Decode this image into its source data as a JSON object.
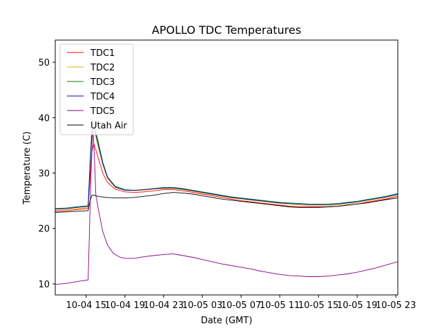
{
  "chart_data": {
    "type": "line",
    "title": "APOLLO TDC Temperatures",
    "xlabel": "Date (GMT)",
    "ylabel": "Temperature (C)",
    "xlim": [
      11.8,
      47.2
    ],
    "ylim": [
      8.0,
      54.0
    ],
    "x_unit": "hours since 10-04 00:00 GMT",
    "x_ticks": [
      {
        "value": 15,
        "label": "10-04 15"
      },
      {
        "value": 19,
        "label": "10-04 19"
      },
      {
        "value": 23,
        "label": "10-04 23"
      },
      {
        "value": 27,
        "label": "10-05 03"
      },
      {
        "value": 31,
        "label": "10-05 07"
      },
      {
        "value": 35,
        "label": "10-05 11"
      },
      {
        "value": 39,
        "label": "10-05 15"
      },
      {
        "value": 43,
        "label": "10-05 19"
      },
      {
        "value": 47,
        "label": "10-05 23"
      }
    ],
    "y_ticks": [
      {
        "value": 10,
        "label": "10"
      },
      {
        "value": 20,
        "label": "20"
      },
      {
        "value": 30,
        "label": "30"
      },
      {
        "value": 40,
        "label": "40"
      },
      {
        "value": 50,
        "label": "50"
      }
    ],
    "grid": false,
    "legend_position": "top-left",
    "series": [
      {
        "name": "TDC1",
        "color": "#ff0000",
        "points": [
          [
            11.8,
            23.1
          ],
          [
            13,
            23.2
          ],
          [
            14,
            23.4
          ],
          [
            15.2,
            23.6
          ],
          [
            15.4,
            29.0
          ],
          [
            15.6,
            34.0
          ],
          [
            15.8,
            35.3
          ],
          [
            16.2,
            33.0
          ],
          [
            16.7,
            30.0
          ],
          [
            17.2,
            28.3
          ],
          [
            18,
            27.1
          ],
          [
            19,
            26.6
          ],
          [
            20,
            26.5
          ],
          [
            21,
            26.6
          ],
          [
            22,
            26.8
          ],
          [
            23,
            27.0
          ],
          [
            24,
            27.0
          ],
          [
            25,
            26.8
          ],
          [
            26,
            26.5
          ],
          [
            27,
            26.2
          ],
          [
            28,
            25.9
          ],
          [
            29,
            25.6
          ],
          [
            30,
            25.3
          ],
          [
            31,
            25.0
          ],
          [
            32,
            24.8
          ],
          [
            33,
            24.6
          ],
          [
            34,
            24.4
          ],
          [
            35,
            24.2
          ],
          [
            36,
            24.0
          ],
          [
            37,
            23.9
          ],
          [
            38,
            23.9
          ],
          [
            39,
            23.9
          ],
          [
            40,
            23.9
          ],
          [
            41,
            24.0
          ],
          [
            42,
            24.2
          ],
          [
            43,
            24.4
          ],
          [
            44,
            24.7
          ],
          [
            45,
            25.0
          ],
          [
            46,
            25.3
          ],
          [
            47.2,
            25.8
          ]
        ]
      },
      {
        "name": "TDC2",
        "color": "#e5b000",
        "points": [
          [
            11.8,
            23.3
          ],
          [
            13,
            23.4
          ],
          [
            14,
            23.6
          ],
          [
            15.2,
            23.8
          ],
          [
            15.4,
            31.0
          ],
          [
            15.6,
            37.0
          ],
          [
            15.8,
            38.0
          ],
          [
            16.2,
            35.0
          ],
          [
            16.7,
            31.5
          ],
          [
            17.2,
            29.0
          ],
          [
            18,
            27.4
          ],
          [
            19,
            26.9
          ],
          [
            20,
            26.8
          ],
          [
            21,
            26.9
          ],
          [
            22,
            27.1
          ],
          [
            23,
            27.2
          ],
          [
            24,
            27.2
          ],
          [
            25,
            27.0
          ],
          [
            26,
            26.7
          ],
          [
            27,
            26.4
          ],
          [
            28,
            26.1
          ],
          [
            29,
            25.8
          ],
          [
            30,
            25.5
          ],
          [
            31,
            25.3
          ],
          [
            32,
            25.1
          ],
          [
            33,
            24.9
          ],
          [
            34,
            24.7
          ],
          [
            35,
            24.5
          ],
          [
            36,
            24.3
          ],
          [
            37,
            24.2
          ],
          [
            38,
            24.1
          ],
          [
            39,
            24.1
          ],
          [
            40,
            24.1
          ],
          [
            41,
            24.2
          ],
          [
            42,
            24.4
          ],
          [
            43,
            24.6
          ],
          [
            44,
            24.9
          ],
          [
            45,
            25.2
          ],
          [
            46,
            25.5
          ],
          [
            47.2,
            26.0
          ]
        ]
      },
      {
        "name": "TDC3",
        "color": "#008000",
        "points": [
          [
            11.8,
            23.6
          ],
          [
            13,
            23.7
          ],
          [
            14,
            23.9
          ],
          [
            15.2,
            24.1
          ],
          [
            15.4,
            32.0
          ],
          [
            15.6,
            38.5
          ],
          [
            15.8,
            39.0
          ],
          [
            16.2,
            36.0
          ],
          [
            16.7,
            32.0
          ],
          [
            17.2,
            29.3
          ],
          [
            18,
            27.6
          ],
          [
            19,
            27.0
          ],
          [
            20,
            26.9
          ],
          [
            21,
            27.0
          ],
          [
            22,
            27.2
          ],
          [
            23,
            27.4
          ],
          [
            24,
            27.4
          ],
          [
            25,
            27.2
          ],
          [
            26,
            26.9
          ],
          [
            27,
            26.6
          ],
          [
            28,
            26.3
          ],
          [
            29,
            26.0
          ],
          [
            30,
            25.7
          ],
          [
            31,
            25.5
          ],
          [
            32,
            25.3
          ],
          [
            33,
            25.1
          ],
          [
            34,
            24.9
          ],
          [
            35,
            24.7
          ],
          [
            36,
            24.6
          ],
          [
            37,
            24.5
          ],
          [
            38,
            24.4
          ],
          [
            39,
            24.4
          ],
          [
            40,
            24.4
          ],
          [
            41,
            24.5
          ],
          [
            42,
            24.7
          ],
          [
            43,
            24.9
          ],
          [
            44,
            25.2
          ],
          [
            45,
            25.5
          ],
          [
            46,
            25.8
          ],
          [
            47.2,
            26.3
          ]
        ]
      },
      {
        "name": "TDC4",
        "color": "#0000cc",
        "points": [
          [
            11.8,
            23.5
          ],
          [
            13,
            23.6
          ],
          [
            14,
            23.8
          ],
          [
            15.2,
            24.0
          ],
          [
            15.4,
            31.5
          ],
          [
            15.6,
            37.5
          ],
          [
            15.8,
            38.3
          ],
          [
            16.2,
            35.5
          ],
          [
            16.7,
            31.8
          ],
          [
            17.2,
            29.2
          ],
          [
            18,
            27.5
          ],
          [
            19,
            26.9
          ],
          [
            20,
            26.9
          ],
          [
            21,
            27.0
          ],
          [
            22,
            27.2
          ],
          [
            23,
            27.3
          ],
          [
            24,
            27.3
          ],
          [
            25,
            27.1
          ],
          [
            26,
            26.8
          ],
          [
            27,
            26.5
          ],
          [
            28,
            26.2
          ],
          [
            29,
            25.9
          ],
          [
            30,
            25.6
          ],
          [
            31,
            25.4
          ],
          [
            32,
            25.2
          ],
          [
            33,
            25.0
          ],
          [
            34,
            24.8
          ],
          [
            35,
            24.6
          ],
          [
            36,
            24.5
          ],
          [
            37,
            24.4
          ],
          [
            38,
            24.3
          ],
          [
            39,
            24.3
          ],
          [
            40,
            24.3
          ],
          [
            41,
            24.4
          ],
          [
            42,
            24.6
          ],
          [
            43,
            24.8
          ],
          [
            44,
            25.1
          ],
          [
            45,
            25.4
          ],
          [
            46,
            25.7
          ],
          [
            47.2,
            26.2
          ]
        ]
      },
      {
        "name": "TDC5",
        "color": "#800080",
        "points": [
          [
            11.8,
            9.9
          ],
          [
            13,
            10.1
          ],
          [
            14,
            10.4
          ],
          [
            15.2,
            10.7
          ],
          [
            15.3,
            17.0
          ],
          [
            15.5,
            30.0
          ],
          [
            15.7,
            38.0
          ],
          [
            15.85,
            33.0
          ],
          [
            16.0,
            26.0
          ],
          [
            16.3,
            23.0
          ],
          [
            16.7,
            19.5
          ],
          [
            17.2,
            17.0
          ],
          [
            17.8,
            15.5
          ],
          [
            18.5,
            14.8
          ],
          [
            19,
            14.6
          ],
          [
            20,
            14.6
          ],
          [
            21,
            14.9
          ],
          [
            22,
            15.1
          ],
          [
            23,
            15.3
          ],
          [
            24,
            15.4
          ],
          [
            25,
            15.1
          ],
          [
            26,
            14.8
          ],
          [
            27,
            14.4
          ],
          [
            28,
            14.0
          ],
          [
            29,
            13.6
          ],
          [
            30,
            13.3
          ],
          [
            31,
            13.0
          ],
          [
            32,
            12.7
          ],
          [
            33,
            12.3
          ],
          [
            34,
            12.0
          ],
          [
            35,
            11.7
          ],
          [
            36,
            11.5
          ],
          [
            37,
            11.4
          ],
          [
            38,
            11.3
          ],
          [
            39,
            11.3
          ],
          [
            40,
            11.4
          ],
          [
            41,
            11.6
          ],
          [
            42,
            11.8
          ],
          [
            43,
            12.1
          ],
          [
            44,
            12.5
          ],
          [
            45,
            12.9
          ],
          [
            46,
            13.4
          ],
          [
            47.2,
            14.0
          ]
        ]
      },
      {
        "name": "Utah Air",
        "color": "#000000",
        "points": [
          [
            11.8,
            22.9
          ],
          [
            13,
            23.0
          ],
          [
            14,
            23.1
          ],
          [
            15.2,
            23.2
          ],
          [
            15.4,
            25.0
          ],
          [
            15.6,
            26.0
          ],
          [
            15.8,
            26.0
          ],
          [
            16.2,
            25.8
          ],
          [
            17,
            25.6
          ],
          [
            18,
            25.5
          ],
          [
            19,
            25.5
          ],
          [
            20,
            25.6
          ],
          [
            21,
            25.8
          ],
          [
            22,
            26.0
          ],
          [
            23,
            26.3
          ],
          [
            24,
            26.5
          ],
          [
            25,
            26.4
          ],
          [
            26,
            26.2
          ],
          [
            27,
            25.9
          ],
          [
            28,
            25.6
          ],
          [
            29,
            25.3
          ],
          [
            30,
            25.1
          ],
          [
            31,
            24.9
          ],
          [
            32,
            24.7
          ],
          [
            33,
            24.5
          ],
          [
            34,
            24.3
          ],
          [
            35,
            24.1
          ],
          [
            36,
            23.9
          ],
          [
            37,
            23.8
          ],
          [
            38,
            23.8
          ],
          [
            39,
            23.8
          ],
          [
            40,
            23.9
          ],
          [
            41,
            24.0
          ],
          [
            42,
            24.2
          ],
          [
            43,
            24.4
          ],
          [
            44,
            24.6
          ],
          [
            45,
            24.9
          ],
          [
            46,
            25.2
          ],
          [
            47.2,
            25.5
          ]
        ]
      }
    ]
  }
}
